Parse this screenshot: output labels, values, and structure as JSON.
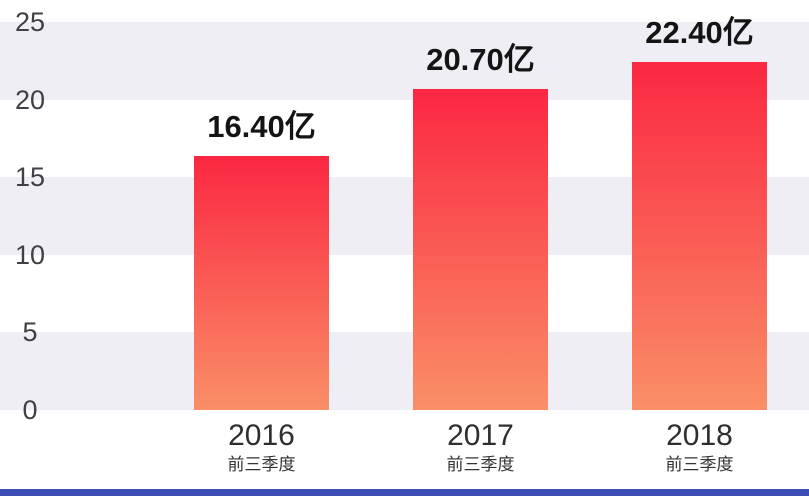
{
  "chart_data": {
    "type": "bar",
    "title": "",
    "categories": [
      "2016",
      "2017",
      "2018"
    ],
    "category_sublabel": "前三季度",
    "values": [
      16.4,
      20.7,
      22.4
    ],
    "unit": "亿",
    "data_labels": [
      "16.40亿",
      "20.70亿",
      "22.40亿"
    ],
    "xlabel": "",
    "ylabel": "",
    "ylim": [
      0,
      25
    ],
    "yticks": [
      0,
      5,
      10,
      15,
      20,
      25
    ],
    "grid": "zebra-stripes",
    "legend": "none",
    "colors": {
      "bar_gradient_top": "#fb2742",
      "bar_gradient_bottom": "#f98f67",
      "stripe": "#f0eef5",
      "background": "#ffffff",
      "bottom_accent_strip": "#3b4eb2",
      "data_label_text": "#141414",
      "axis_text": "#3f3f46"
    }
  }
}
